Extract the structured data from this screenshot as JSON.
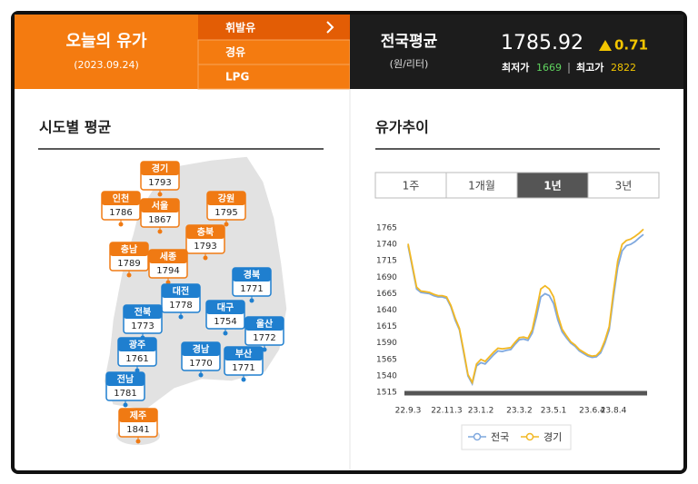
{
  "header": {
    "title": "오늘의 유가",
    "date": "(2023.09.24)",
    "fuel_tabs": [
      "휘발유",
      "경유",
      "LPG"
    ],
    "national_label": "전국평균",
    "unit": "(원/리터)",
    "price": 1785.92,
    "change": 0.71,
    "min_label": "최저가",
    "min": 1669,
    "max_label": "최고가",
    "max": 2822
  },
  "regions_title": "시도별 평균",
  "regions": [
    {
      "name": "경기",
      "value": 1793,
      "color": "#f07a13"
    },
    {
      "name": "인천",
      "value": 1786,
      "color": "#f07a13"
    },
    {
      "name": "서울",
      "value": 1867,
      "color": "#f07a13"
    },
    {
      "name": "강원",
      "value": 1795,
      "color": "#f07a13"
    },
    {
      "name": "충북",
      "value": 1793,
      "color": "#f07a13"
    },
    {
      "name": "충남",
      "value": 1789,
      "color": "#f07a13"
    },
    {
      "name": "세종",
      "value": 1794,
      "color": "#f07a13"
    },
    {
      "name": "경북",
      "value": 1771,
      "color": "#1f7fcf"
    },
    {
      "name": "대전",
      "value": 1778,
      "color": "#1f7fcf"
    },
    {
      "name": "전북",
      "value": 1773,
      "color": "#1f7fcf"
    },
    {
      "name": "대구",
      "value": 1754,
      "color": "#1f7fcf"
    },
    {
      "name": "울산",
      "value": 1772,
      "color": "#1f7fcf"
    },
    {
      "name": "광주",
      "value": 1761,
      "color": "#1f7fcf"
    },
    {
      "name": "경남",
      "value": 1770,
      "color": "#1f7fcf"
    },
    {
      "name": "부산",
      "value": 1771,
      "color": "#1f7fcf"
    },
    {
      "name": "전남",
      "value": 1781,
      "color": "#1f7fcf"
    },
    {
      "name": "제주",
      "value": 1841,
      "color": "#f07a13"
    }
  ],
  "trend_title": "유가추이",
  "range_tabs": [
    "1주",
    "1개월",
    "1년",
    "3년"
  ],
  "active_tab": 2,
  "chart_data": {
    "type": "line",
    "categories": [
      "22.9.3",
      null,
      null,
      null,
      null,
      null,
      null,
      null,
      null,
      "22.11.3",
      null,
      null,
      null,
      null,
      null,
      null,
      null,
      "23.1.2",
      null,
      null,
      null,
      null,
      null,
      null,
      null,
      null,
      "23.3.2",
      null,
      null,
      null,
      null,
      null,
      null,
      null,
      "23.5.1",
      null,
      null,
      null,
      null,
      null,
      null,
      null,
      null,
      "23.6.4",
      null,
      null,
      null,
      null,
      "23.8.4",
      null,
      null,
      null,
      null,
      null,
      null,
      null
    ],
    "series": [
      {
        "name": "전국",
        "color": "#7fa8de",
        "values": [
          1738,
          1705,
          1672,
          1667,
          1666,
          1665,
          1662,
          1660,
          1660,
          1658,
          1645,
          1625,
          1610,
          1575,
          1540,
          1528,
          1555,
          1560,
          1558,
          1565,
          1572,
          1578,
          1577,
          1579,
          1580,
          1588,
          1595,
          1596,
          1594,
          1605,
          1630,
          1660,
          1665,
          1662,
          1650,
          1625,
          1607,
          1598,
          1590,
          1585,
          1578,
          1574,
          1570,
          1568,
          1569,
          1575,
          1590,
          1610,
          1660,
          1705,
          1730,
          1738,
          1740,
          1744,
          1750,
          1755
        ]
      },
      {
        "name": "경기",
        "color": "#f2b824",
        "values": [
          1741,
          1708,
          1675,
          1669,
          1668,
          1667,
          1664,
          1662,
          1662,
          1660,
          1647,
          1628,
          1612,
          1578,
          1542,
          1530,
          1558,
          1565,
          1562,
          1569,
          1576,
          1582,
          1581,
          1582,
          1583,
          1591,
          1598,
          1599,
          1597,
          1610,
          1640,
          1672,
          1677,
          1672,
          1660,
          1632,
          1611,
          1601,
          1592,
          1587,
          1580,
          1576,
          1572,
          1570,
          1571,
          1578,
          1594,
          1615,
          1668,
          1715,
          1740,
          1746,
          1748,
          1752,
          1757,
          1763
        ]
      }
    ],
    "ylim": [
      1515,
      1765
    ],
    "yticks": [
      1515,
      1540,
      1565,
      1590,
      1615,
      1640,
      1665,
      1690,
      1715,
      1740,
      1765
    ],
    "grid": false,
    "legend": "bottom"
  }
}
